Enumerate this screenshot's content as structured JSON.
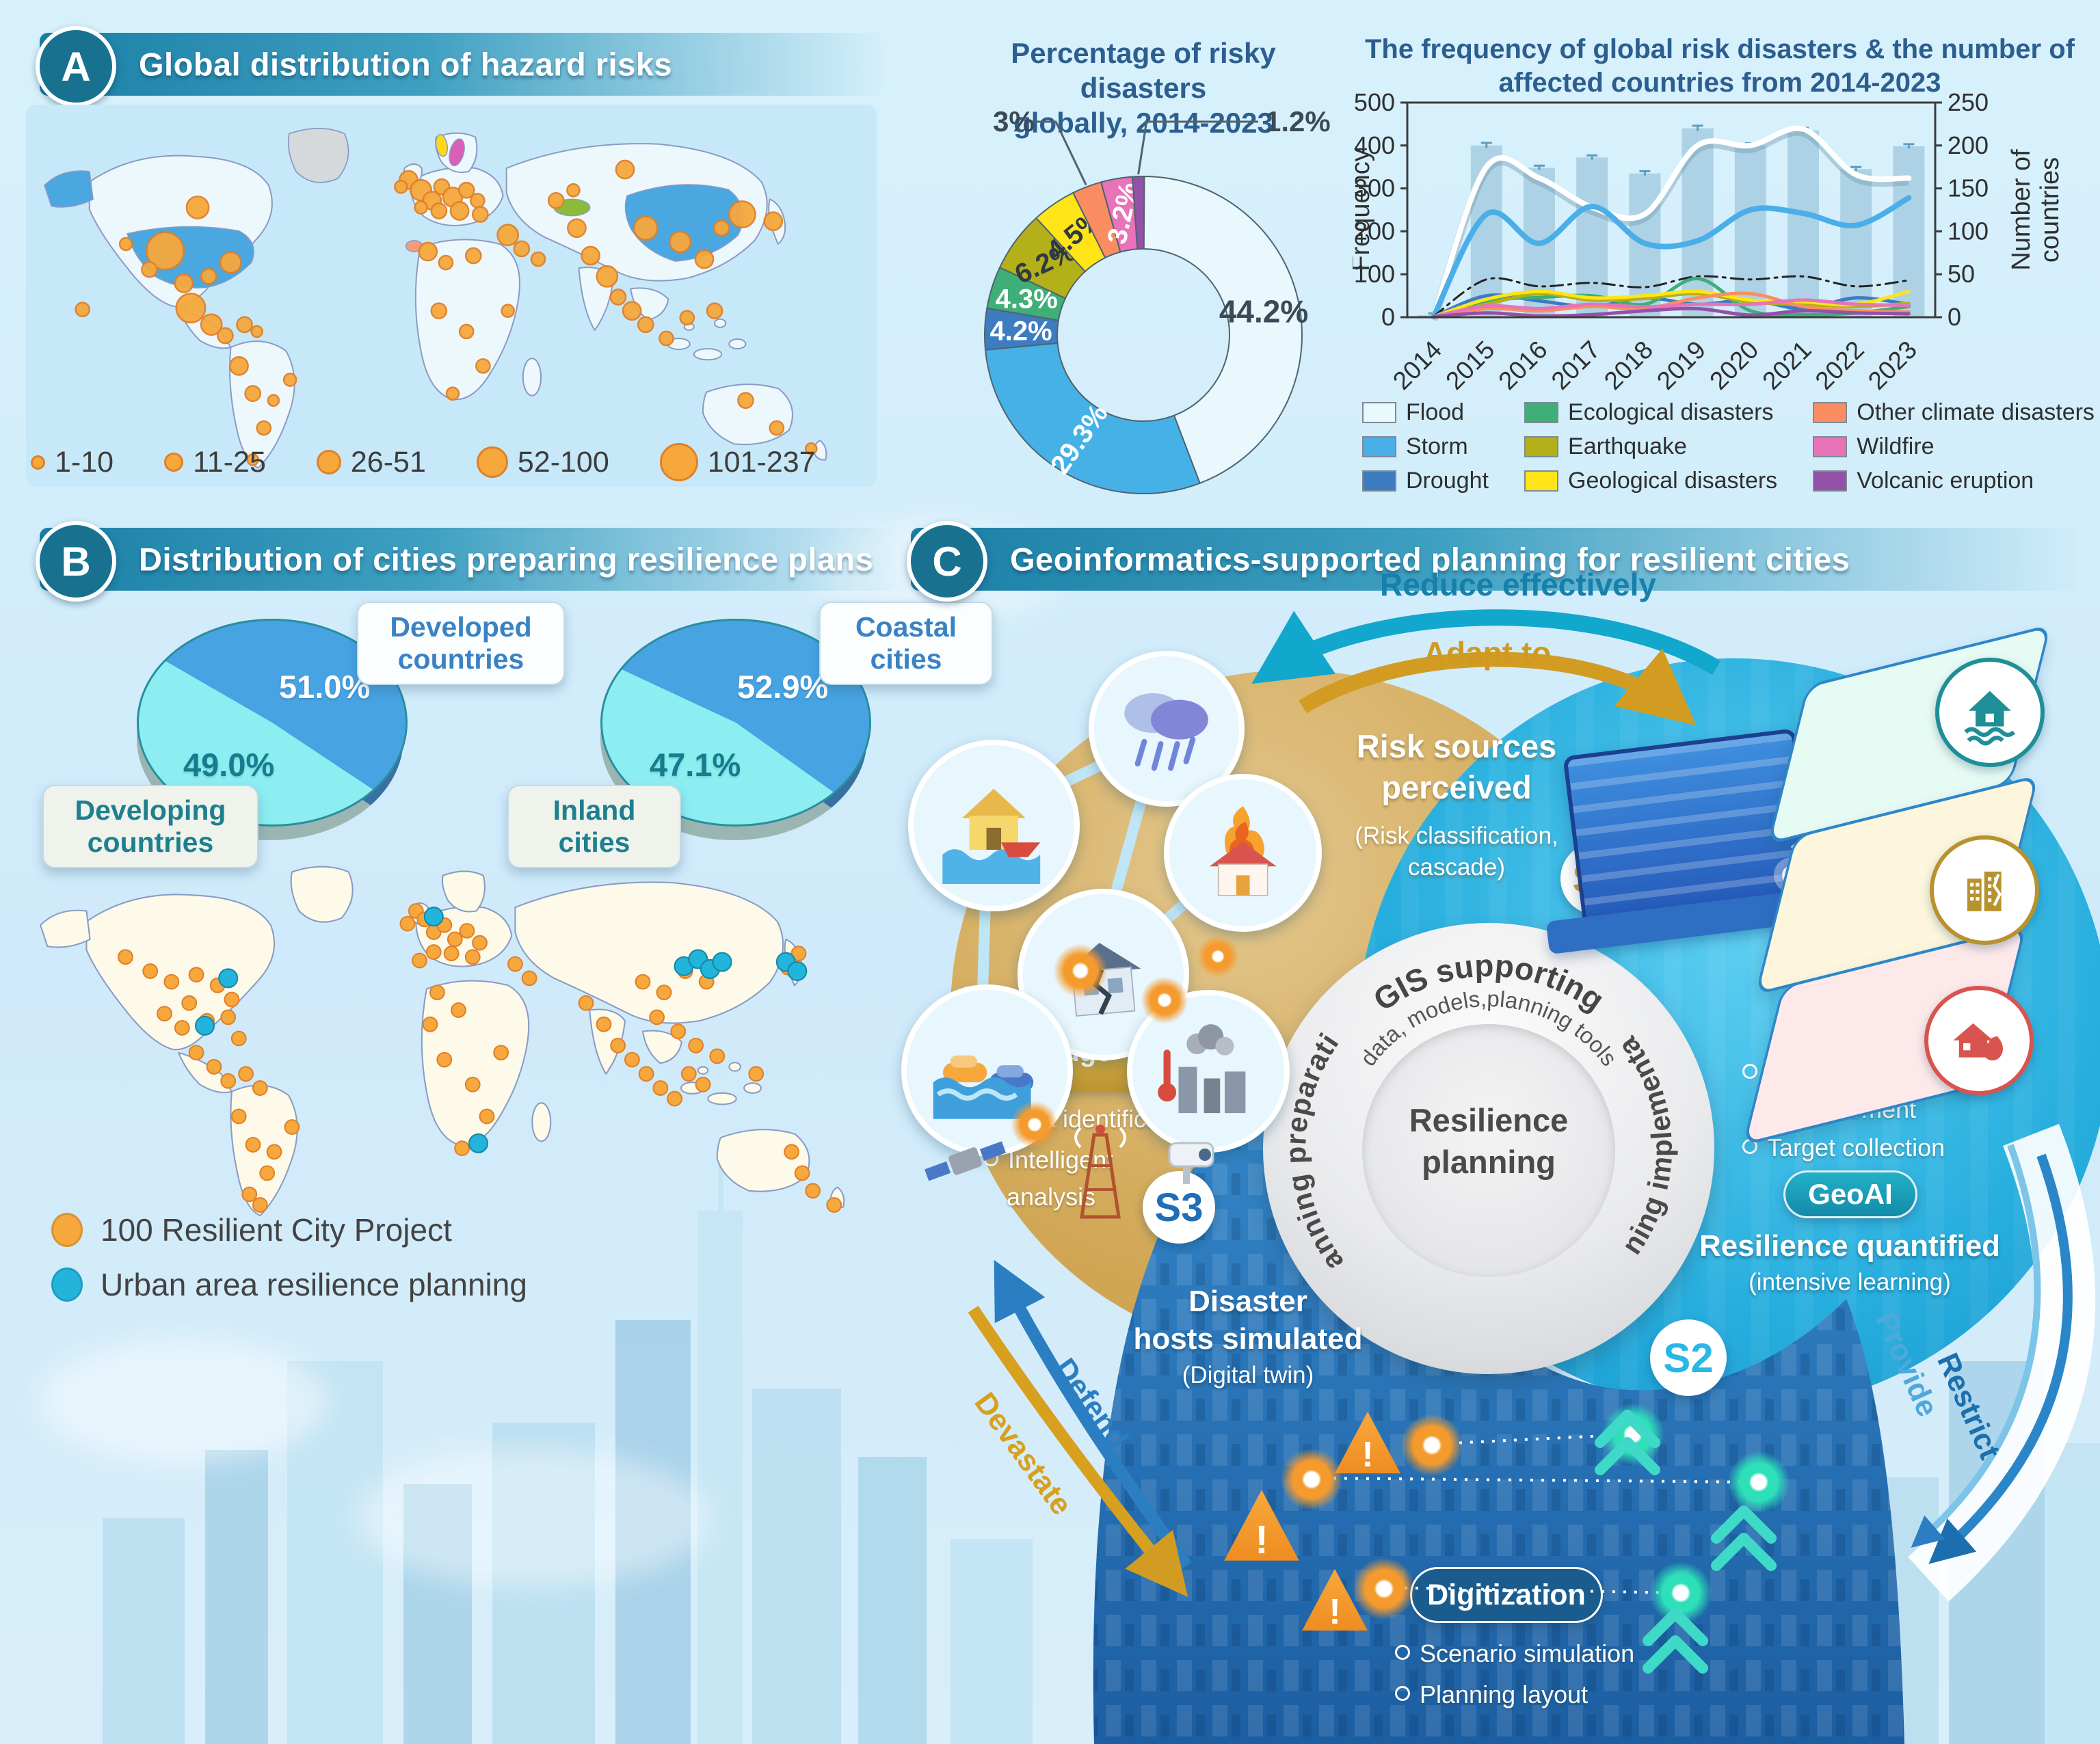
{
  "page": {
    "bg": "#cfeafa"
  },
  "panelA": {
    "badge": "A",
    "title": "Global distribution of hazard risks",
    "bubble_legend": [
      {
        "label": "1-10",
        "d": 15
      },
      {
        "label": "11-25",
        "d": 22
      },
      {
        "label": "26-51",
        "d": 30
      },
      {
        "label": "52-100",
        "d": 40
      },
      {
        "label": "101-237",
        "d": 50
      }
    ]
  },
  "panelB": {
    "badge": "B",
    "title": "Distribution of cities preparing resilience plans",
    "pie_countries": {
      "slice1_label_line1": "Developed",
      "slice1_label_line2": "countries",
      "slice2_label_line1": "Developing",
      "slice2_label_line2": "countries",
      "slice1_display": "51.0%",
      "slice2_display": "49.0%"
    },
    "pie_cities": {
      "slice1_label_line1": "Coastal",
      "slice1_label_line2": "cities",
      "slice2_label_line1": "Inland",
      "slice2_label_line2": "cities",
      "slice1_display": "52.9%",
      "slice2_display": "47.1%"
    },
    "legend": [
      {
        "label": "100 Resilient City Project",
        "color": "#f6a83c"
      },
      {
        "label": "Urban area resilience planning",
        "color": "#23b4dc"
      }
    ]
  },
  "panelC": {
    "badge": "C",
    "title": "Geoinformatics-supported planning for resilient cities",
    "reduce_label": "Reduce effectively",
    "adapt_label": "Adapt to",
    "risk_sources_line1": "Risk sources",
    "risk_sources_line2": "perceived",
    "risk_sources_sub_line1": "(Risk classification,",
    "risk_sources_sub_line2": "cascade)",
    "s1": "S1",
    "s2": "S2",
    "s3": "S3",
    "gis_arc_line1": "GIS supporting",
    "gis_arc_line2": "data, models,planning tools",
    "center_line1": "Resilience",
    "center_line2": "planning",
    "planning_preparation": "Planning preparation",
    "planning_implementation": "Planning implementation",
    "knowledge_graph": "Knowledge graph",
    "kg_bullet1": "Risk identification",
    "kg_bullet2_line1": "Intelligent",
    "kg_bullet2_line2": "analysis",
    "rq_bullet1_line1": "Resilience",
    "rq_bullet1_line2": "measurement",
    "rq_bullet2": "Target collection",
    "geoai": "GeoAI",
    "resilience_quantified": "Resilience quantified",
    "intensive_learning": "(intensive learning)",
    "disaster_hosts_line1": "Disaster",
    "disaster_hosts_line2": "hosts simulated",
    "digital_twin": "(Digital twin)",
    "digitization": "Digitization",
    "dig_bullet1": "Scenario simulation",
    "dig_bullet2": "Planning layout",
    "defend": "Defend",
    "devastate": "Devastate",
    "provide": "Provide",
    "restrict": "Restrict"
  },
  "chart_data": [
    {
      "id": "risk-donut",
      "type": "pie",
      "donut": true,
      "title_line1": "Percentage of risky disasters",
      "title_line2": "globally, 2014-2023",
      "slices": [
        {
          "name": "Flood",
          "value": 44.2,
          "label": "44.2%",
          "color": "#e9f8fd",
          "text": "#3b4a57",
          "rot": 0,
          "placement": "inside",
          "labelR": 0.5,
          "big": true
        },
        {
          "name": "Storm",
          "value": 29.3,
          "label": "29.3%",
          "color": "#45b1e7",
          "text": "#ffffff",
          "rot": -55,
          "placement": "inside",
          "labelR": 0.5
        },
        {
          "name": "Drought",
          "value": 4.2,
          "label": "4.2%",
          "color": "#3d7cc0",
          "text": "#ffffff",
          "rot": 0,
          "placement": "inside",
          "labelR": 0.5
        },
        {
          "name": "Ecological disasters",
          "value": 4.3,
          "label": "4.3%",
          "color": "#3fae77",
          "text": "#ffffff",
          "rot": 0,
          "placement": "inside",
          "labelR": 0.5
        },
        {
          "name": "Earthquake",
          "value": 6.2,
          "label": "6.2%",
          "color": "#b3b019",
          "text": "#2f3a42",
          "rot": -25,
          "placement": "inside",
          "labelR": 0.5
        },
        {
          "name": "Geological disasters",
          "value": 4.5,
          "label": "4.5%",
          "color": "#ffe417",
          "text": "#2f3a42",
          "rot": -40,
          "placement": "inside",
          "labelR": 0.5
        },
        {
          "name": "Other climate disasters",
          "value": 3.0,
          "label": "3%",
          "color": "#fa8e62",
          "text": "#3b4a57",
          "placement": "callout-left"
        },
        {
          "name": "Wildfire",
          "value": 3.2,
          "label": "3.2%",
          "color": "#e873b8",
          "text": "#ffffff",
          "rot": -78,
          "placement": "inside",
          "labelR": 0.52
        },
        {
          "name": "Volcanic eruption",
          "value": 1.2,
          "label": "1.2%",
          "color": "#9351a8",
          "text": "#3b4a57",
          "placement": "callout-right"
        }
      ]
    },
    {
      "id": "freq-combo",
      "type": "bar-line",
      "title_line1": "The frequency of global risk disasters & the number of",
      "title_line2": "affected countries from 2014-2023",
      "ylabel": "Frequency",
      "y2label_line1": "Number of",
      "y2label_line2": "countries",
      "ylim": [
        0,
        500
      ],
      "y2lim": [
        0,
        250
      ],
      "categories": [
        "2014",
        "2015",
        "2016",
        "2017",
        "2018",
        "2019",
        "2020",
        "2021",
        "2022",
        "2023"
      ],
      "bars": {
        "name": "Total disaster frequency",
        "color": "#a6cde0",
        "values": [
          5,
          400,
          348,
          372,
          335,
          440,
          400,
          435,
          345,
          398
        ],
        "err": [
          4,
          6,
          5,
          5,
          5,
          6,
          5,
          6,
          5,
          5
        ]
      },
      "series": [
        {
          "name": "Number of affected countries",
          "color": "#ffffff",
          "width": 8,
          "axis": "right",
          "values": [
            1,
            175,
            162,
            128,
            120,
            200,
            200,
            219,
            166,
            162
          ]
        },
        {
          "name": "Storm",
          "color": "#4aaee8",
          "width": 8,
          "axis": "left",
          "values": [
            2,
            240,
            172,
            258,
            172,
            178,
            250,
            242,
            214,
            278
          ]
        },
        {
          "name": "All hazard types",
          "color": "#222222",
          "width": 3,
          "dash": "18 8 4 8",
          "axis": "left",
          "values": [
            2,
            88,
            72,
            80,
            70,
            95,
            88,
            95,
            72,
            86
          ]
        },
        {
          "name": "Drought",
          "color": "#3d7cc0",
          "width": 5,
          "axis": "left",
          "values": [
            1,
            50,
            38,
            25,
            45,
            30,
            40,
            20,
            45,
            30
          ]
        },
        {
          "name": "Ecological disasters",
          "color": "#3fae77",
          "width": 5,
          "axis": "left",
          "values": [
            1,
            38,
            46,
            50,
            30,
            90,
            15,
            6,
            10,
            25
          ]
        },
        {
          "name": "Earthquake",
          "color": "#b3b019",
          "width": 5,
          "axis": "left",
          "values": [
            1,
            30,
            55,
            40,
            44,
            55,
            35,
            30,
            25,
            32
          ]
        },
        {
          "name": "Geological disasters",
          "color": "#ffe417",
          "width": 5,
          "axis": "left",
          "values": [
            1,
            42,
            60,
            45,
            50,
            60,
            40,
            36,
            30,
            60
          ]
        },
        {
          "name": "Other climate disasters",
          "color": "#fa8e62",
          "width": 5,
          "axis": "left",
          "values": [
            1,
            20,
            15,
            25,
            20,
            45,
            55,
            25,
            15,
            12
          ]
        },
        {
          "name": "Wildfire",
          "color": "#e873b8",
          "width": 5,
          "axis": "left",
          "values": [
            1,
            26,
            20,
            30,
            24,
            30,
            30,
            40,
            30,
            28
          ]
        },
        {
          "name": "Volcanic eruption",
          "color": "#9351a8",
          "width": 5,
          "axis": "left",
          "values": [
            1,
            10,
            3,
            6,
            15,
            20,
            5,
            15,
            10,
            8
          ]
        }
      ],
      "legend": [
        {
          "label": "Flood",
          "color": "#eaf9fe"
        },
        {
          "label": "Storm",
          "color": "#4aaee8"
        },
        {
          "label": "Drought",
          "color": "#3d7cc0"
        },
        {
          "label": "Ecological disasters",
          "color": "#3fae77"
        },
        {
          "label": "Earthquake",
          "color": "#b3b019"
        },
        {
          "label": "Geological disasters",
          "color": "#ffe417"
        },
        {
          "label": "Other climate disasters",
          "color": "#fa8e62"
        },
        {
          "label": "Wildfire",
          "color": "#e873b8"
        },
        {
          "label": "Volcanic eruption",
          "color": "#9351a8"
        }
      ]
    },
    {
      "id": "pie-countries",
      "type": "pie",
      "start_deg": 300,
      "labels": [
        "Developed countries",
        "Developing countries"
      ],
      "values": [
        51.0,
        49.0
      ],
      "colors": [
        "#47a3e2",
        "#8deef2"
      ],
      "depth_colors": [
        "#2f7cbf",
        "#a3c6c2"
      ]
    },
    {
      "id": "pie-cities",
      "type": "pie",
      "start_deg": 295,
      "labels": [
        "Coastal cities",
        "Inland cities"
      ],
      "values": [
        52.9,
        47.1
      ],
      "colors": [
        "#47a3e2",
        "#8deef2"
      ],
      "depth_colors": [
        "#2f7cbf",
        "#a3c6c2"
      ]
    },
    {
      "id": "map-hazard",
      "type": "map-bubbles",
      "color": "#f6a83c",
      "stroke": "#e0802a",
      "bubbles": [
        [
          205,
          215,
          27
        ],
        [
          252,
          152,
          16
        ],
        [
          300,
          232,
          15
        ],
        [
          268,
          252,
          11
        ],
        [
          232,
          262,
          13
        ],
        [
          182,
          242,
          11
        ],
        [
          148,
          205,
          9
        ],
        [
          242,
          298,
          21
        ],
        [
          272,
          322,
          15
        ],
        [
          292,
          338,
          11
        ],
        [
          85,
          300,
          10
        ],
        [
          320,
          322,
          11
        ],
        [
          338,
          332,
          8
        ],
        [
          312,
          382,
          13
        ],
        [
          332,
          422,
          11
        ],
        [
          348,
          472,
          10
        ],
        [
          362,
          432,
          8
        ],
        [
          386,
          402,
          9
        ],
        [
          332,
          518,
          8
        ],
        [
          558,
          112,
          13
        ],
        [
          576,
          127,
          15
        ],
        [
          592,
          142,
          13
        ],
        [
          606,
          122,
          11
        ],
        [
          622,
          137,
          14
        ],
        [
          642,
          127,
          11
        ],
        [
          658,
          142,
          10
        ],
        [
          602,
          157,
          11
        ],
        [
          632,
          157,
          13
        ],
        [
          662,
          162,
          11
        ],
        [
          576,
          152,
          9
        ],
        [
          547,
          122,
          9
        ],
        [
          586,
          216,
          13
        ],
        [
          612,
          232,
          10
        ],
        [
          652,
          222,
          11
        ],
        [
          702,
          192,
          15
        ],
        [
          722,
          212,
          11
        ],
        [
          746,
          227,
          10
        ],
        [
          602,
          302,
          11
        ],
        [
          642,
          332,
          10
        ],
        [
          666,
          382,
          10
        ],
        [
          622,
          422,
          9
        ],
        [
          702,
          302,
          9
        ],
        [
          772,
          142,
          11
        ],
        [
          802,
          182,
          13
        ],
        [
          822,
          222,
          13
        ],
        [
          846,
          252,
          15
        ],
        [
          862,
          282,
          11
        ],
        [
          882,
          302,
          13
        ],
        [
          902,
          322,
          11
        ],
        [
          932,
          342,
          10
        ],
        [
          797,
          127,
          9
        ],
        [
          902,
          182,
          17
        ],
        [
          952,
          202,
          15
        ],
        [
          987,
          227,
          13
        ],
        [
          1012,
          182,
          11
        ],
        [
          1042,
          162,
          19
        ],
        [
          872,
          97,
          13
        ],
        [
          1087,
          172,
          13
        ],
        [
          1002,
          302,
          11
        ],
        [
          962,
          312,
          10
        ],
        [
          1047,
          432,
          11
        ],
        [
          1092,
          472,
          10
        ],
        [
          1142,
          502,
          8
        ]
      ]
    },
    {
      "id": "map-resilience",
      "type": "map-dots",
      "orange_color": "#f6a83c",
      "cyan_color": "#23b4dc",
      "orange": [
        [
          150,
          165
        ],
        [
          185,
          185
        ],
        [
          215,
          200
        ],
        [
          250,
          190
        ],
        [
          280,
          205
        ],
        [
          300,
          225
        ],
        [
          240,
          230
        ],
        [
          205,
          245
        ],
        [
          230,
          265
        ],
        [
          265,
          255
        ],
        [
          295,
          250
        ],
        [
          310,
          280
        ],
        [
          250,
          300
        ],
        [
          275,
          320
        ],
        [
          295,
          340
        ],
        [
          320,
          330
        ],
        [
          340,
          350
        ],
        [
          310,
          390
        ],
        [
          330,
          430
        ],
        [
          350,
          470
        ],
        [
          325,
          500
        ],
        [
          340,
          515
        ],
        [
          360,
          440
        ],
        [
          385,
          405
        ],
        [
          560,
          100
        ],
        [
          548,
          118
        ],
        [
          572,
          112
        ],
        [
          585,
          130
        ],
        [
          600,
          120
        ],
        [
          615,
          140
        ],
        [
          632,
          128
        ],
        [
          650,
          145
        ],
        [
          610,
          160
        ],
        [
          585,
          158
        ],
        [
          565,
          170
        ],
        [
          640,
          165
        ],
        [
          700,
          175
        ],
        [
          720,
          195
        ],
        [
          590,
          215
        ],
        [
          620,
          240
        ],
        [
          580,
          260
        ],
        [
          600,
          310
        ],
        [
          640,
          345
        ],
        [
          660,
          390
        ],
        [
          625,
          435
        ],
        [
          680,
          300
        ],
        [
          800,
          230
        ],
        [
          825,
          260
        ],
        [
          845,
          290
        ],
        [
          865,
          310
        ],
        [
          885,
          330
        ],
        [
          905,
          350
        ],
        [
          925,
          365
        ],
        [
          945,
          330
        ],
        [
          965,
          345
        ],
        [
          900,
          250
        ],
        [
          930,
          270
        ],
        [
          955,
          290
        ],
        [
          985,
          305
        ],
        [
          880,
          200
        ],
        [
          910,
          215
        ],
        [
          1040,
          330
        ],
        [
          1090,
          440
        ],
        [
          1105,
          470
        ],
        [
          1120,
          495
        ],
        [
          1150,
          515
        ],
        [
          940,
          185
        ],
        [
          970,
          200
        ],
        [
          1085,
          180
        ],
        [
          1100,
          160
        ]
      ],
      "cyan": [
        [
          295,
          195
        ],
        [
          262,
          262
        ],
        [
          585,
          108
        ],
        [
          938,
          178
        ],
        [
          958,
          168
        ],
        [
          975,
          182
        ],
        [
          992,
          172
        ],
        [
          1082,
          172
        ],
        [
          1098,
          185
        ],
        [
          648,
          428
        ]
      ]
    }
  ]
}
